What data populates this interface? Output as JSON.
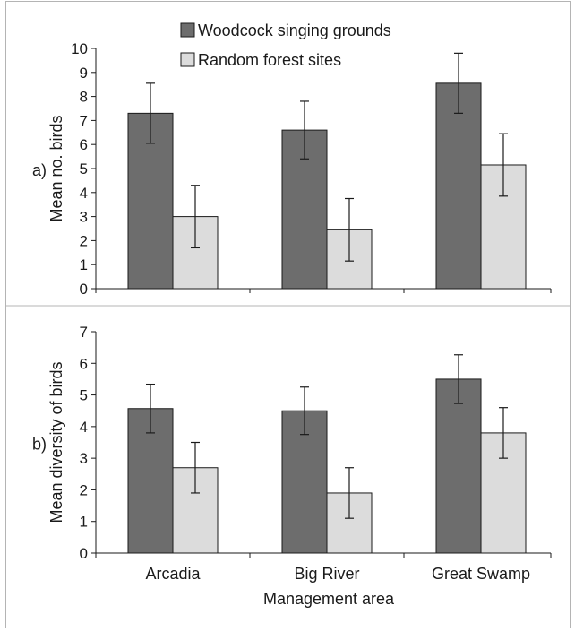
{
  "chart_data": [
    {
      "type": "bar",
      "panel_label": "a)",
      "categories": [
        "Arcadia",
        "Big River",
        "Great Swamp"
      ],
      "series": [
        {
          "name": "Woodcock singing grounds",
          "values": [
            7.3,
            6.6,
            8.55
          ],
          "error": [
            1.25,
            1.2,
            1.25
          ],
          "color": "#6d6d6d"
        },
        {
          "name": "Random forest sites",
          "values": [
            3.0,
            2.45,
            5.15
          ],
          "error": [
            1.3,
            1.3,
            1.3
          ],
          "color": "#dcdcdc"
        }
      ],
      "ylabel": "Mean no. birds",
      "ylim": [
        0,
        10
      ],
      "yticks": [
        0,
        1,
        2,
        3,
        4,
        5,
        6,
        7,
        8,
        9,
        10
      ],
      "legend": "top-center"
    },
    {
      "type": "bar",
      "panel_label": "b)",
      "categories": [
        "Arcadia",
        "Big River",
        "Great Swamp"
      ],
      "series": [
        {
          "name": "Woodcock singing grounds",
          "values": [
            4.57,
            4.5,
            5.5
          ],
          "error": [
            0.77,
            0.75,
            0.77
          ],
          "color": "#6d6d6d"
        },
        {
          "name": "Random forest sites",
          "values": [
            2.7,
            1.9,
            3.8
          ],
          "error": [
            0.8,
            0.8,
            0.8
          ],
          "color": "#dcdcdc"
        }
      ],
      "ylabel": "Mean diversity of birds",
      "xlabel": "Management area",
      "ylim": [
        0,
        7
      ],
      "yticks": [
        0,
        1,
        2,
        3,
        4,
        5,
        6,
        7
      ]
    }
  ]
}
